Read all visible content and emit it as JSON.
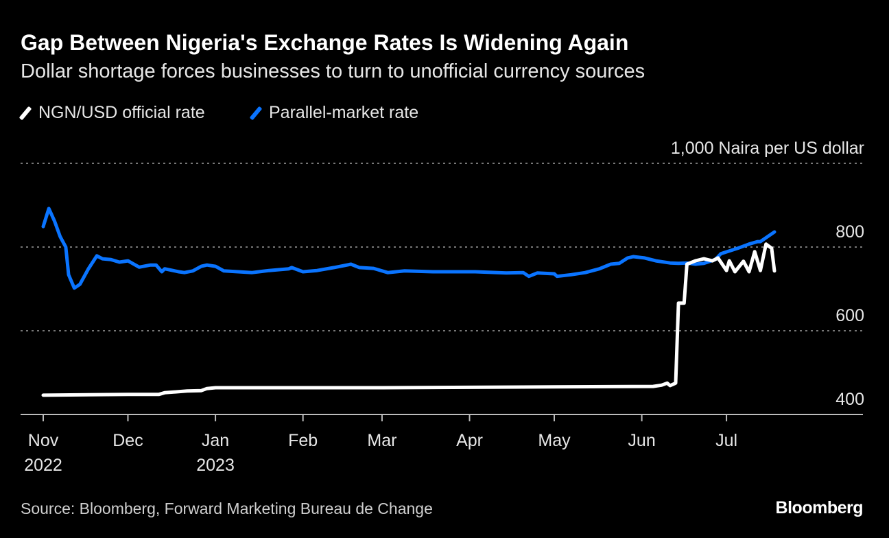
{
  "title": "Gap Between Nigeria's Exchange Rates Is Widening Again",
  "subtitle": "Dollar shortage forces businesses to turn to unofficial currency sources",
  "source": "Source: Bloomberg, Forward Marketing Bureau de Change",
  "logo": "Bloomberg",
  "chart_data": {
    "type": "line",
    "ylabel": "1,000 Naira per US dollar",
    "ylim": [
      400,
      1000
    ],
    "yticks": [
      {
        "value": 1000,
        "label": "1,000"
      },
      {
        "value": 800,
        "label": "800"
      },
      {
        "value": 600,
        "label": "600"
      },
      {
        "value": 400,
        "label": "400"
      }
    ],
    "xlim": [
      "2022-11-01",
      "2023-08-15"
    ],
    "xticks": [
      {
        "date": "2022-11-01",
        "label": "Nov",
        "sublabel": "2022"
      },
      {
        "date": "2022-12-01",
        "label": "Dec",
        "sublabel": ""
      },
      {
        "date": "2023-01-01",
        "label": "Jan",
        "sublabel": "2023"
      },
      {
        "date": "2023-02-01",
        "label": "Feb",
        "sublabel": ""
      },
      {
        "date": "2023-03-01",
        "label": "Mar",
        "sublabel": ""
      },
      {
        "date": "2023-04-01",
        "label": "Apr",
        "sublabel": ""
      },
      {
        "date": "2023-05-01",
        "label": "May",
        "sublabel": ""
      },
      {
        "date": "2023-06-01",
        "label": "Jun",
        "sublabel": ""
      },
      {
        "date": "2023-07-01",
        "label": "Jul",
        "sublabel": ""
      }
    ],
    "grid": true,
    "legend_position": "top-left",
    "series": [
      {
        "name": "NGN/USD official rate",
        "color": "#ffffff",
        "points": [
          [
            "2022-11-01",
            446
          ],
          [
            "2022-12-01",
            448
          ],
          [
            "2022-12-12",
            448
          ],
          [
            "2022-12-14",
            452
          ],
          [
            "2022-12-22",
            456
          ],
          [
            "2022-12-27",
            457
          ],
          [
            "2022-12-29",
            462
          ],
          [
            "2023-01-01",
            464
          ],
          [
            "2023-02-01",
            464
          ],
          [
            "2023-03-01",
            464
          ],
          [
            "2023-04-01",
            465
          ],
          [
            "2023-05-01",
            466
          ],
          [
            "2023-06-05",
            467
          ],
          [
            "2023-06-08",
            470
          ],
          [
            "2023-06-10",
            475
          ],
          [
            "2023-06-11",
            469
          ],
          [
            "2023-06-13",
            475
          ],
          [
            "2023-06-14",
            666
          ],
          [
            "2023-06-16",
            666
          ],
          [
            "2023-06-17",
            759
          ],
          [
            "2023-06-20",
            767
          ],
          [
            "2023-06-23",
            772
          ],
          [
            "2023-06-26",
            767
          ],
          [
            "2023-06-28",
            774
          ],
          [
            "2023-07-01",
            744
          ],
          [
            "2023-07-02",
            767
          ],
          [
            "2023-07-04",
            741
          ],
          [
            "2023-07-07",
            766
          ],
          [
            "2023-07-09",
            741
          ],
          [
            "2023-07-11",
            789
          ],
          [
            "2023-07-13",
            744
          ],
          [
            "2023-07-15",
            807
          ],
          [
            "2023-07-17",
            797
          ],
          [
            "2023-07-18",
            743
          ]
        ]
      },
      {
        "name": "Parallel-market rate",
        "color": "#0a74ff",
        "points": [
          [
            "2022-11-01",
            849
          ],
          [
            "2022-11-03",
            892
          ],
          [
            "2022-11-05",
            862
          ],
          [
            "2022-11-07",
            825
          ],
          [
            "2022-11-09",
            800
          ],
          [
            "2022-11-10",
            734
          ],
          [
            "2022-11-12",
            702
          ],
          [
            "2022-11-14",
            711
          ],
          [
            "2022-11-17",
            748
          ],
          [
            "2022-11-20",
            779
          ],
          [
            "2022-11-22",
            772
          ],
          [
            "2022-11-25",
            770
          ],
          [
            "2022-11-28",
            764
          ],
          [
            "2022-12-01",
            767
          ],
          [
            "2022-12-05",
            752
          ],
          [
            "2022-12-09",
            757
          ],
          [
            "2022-12-11",
            757
          ],
          [
            "2022-12-13",
            741
          ],
          [
            "2022-12-14",
            748
          ],
          [
            "2022-12-19",
            741
          ],
          [
            "2022-12-21",
            739
          ],
          [
            "2022-12-24",
            743
          ],
          [
            "2022-12-27",
            754
          ],
          [
            "2022-12-29",
            757
          ],
          [
            "2023-01-01",
            754
          ],
          [
            "2023-01-04",
            743
          ],
          [
            "2023-01-09",
            741
          ],
          [
            "2023-01-14",
            739
          ],
          [
            "2023-01-20",
            744
          ],
          [
            "2023-01-27",
            748
          ],
          [
            "2023-01-28",
            751
          ],
          [
            "2023-02-01",
            741
          ],
          [
            "2023-02-06",
            744
          ],
          [
            "2023-02-12",
            751
          ],
          [
            "2023-02-18",
            759
          ],
          [
            "2023-02-21",
            751
          ],
          [
            "2023-02-26",
            749
          ],
          [
            "2023-03-03",
            739
          ],
          [
            "2023-03-09",
            743
          ],
          [
            "2023-03-19",
            741
          ],
          [
            "2023-03-27",
            741
          ],
          [
            "2023-04-03",
            741
          ],
          [
            "2023-04-14",
            738
          ],
          [
            "2023-04-20",
            739
          ],
          [
            "2023-04-22",
            730
          ],
          [
            "2023-04-25",
            738
          ],
          [
            "2023-05-01",
            736
          ],
          [
            "2023-05-02",
            730
          ],
          [
            "2023-05-07",
            734
          ],
          [
            "2023-05-12",
            739
          ],
          [
            "2023-05-17",
            748
          ],
          [
            "2023-05-21",
            759
          ],
          [
            "2023-05-24",
            761
          ],
          [
            "2023-05-27",
            774
          ],
          [
            "2023-05-29",
            777
          ],
          [
            "2023-06-02",
            774
          ],
          [
            "2023-06-06",
            767
          ],
          [
            "2023-06-11",
            762
          ],
          [
            "2023-06-14",
            761
          ],
          [
            "2023-06-17",
            762
          ],
          [
            "2023-06-20",
            759
          ],
          [
            "2023-06-23",
            761
          ],
          [
            "2023-06-27",
            770
          ],
          [
            "2023-06-29",
            784
          ],
          [
            "2023-07-05",
            797
          ],
          [
            "2023-07-09",
            807
          ],
          [
            "2023-07-12",
            813
          ],
          [
            "2023-07-13",
            813
          ],
          [
            "2023-07-18",
            836
          ]
        ]
      }
    ]
  }
}
